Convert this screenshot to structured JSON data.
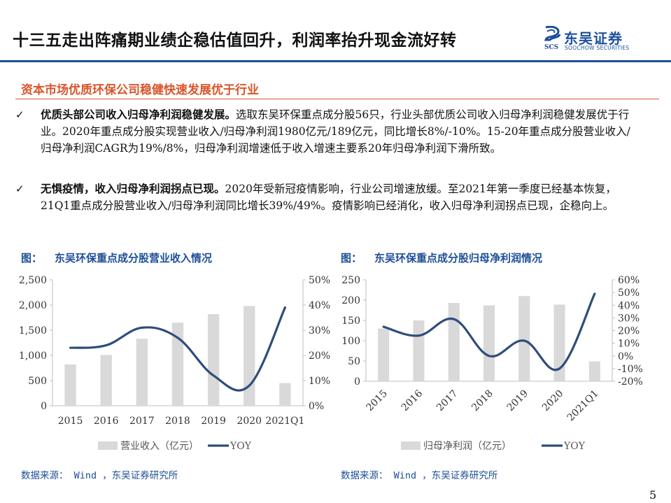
{
  "header": {
    "title": "十三五走出阵痛期业绩企稳估值回升，利润率抬升现金流好转",
    "logo_cn": "东吴证券",
    "logo_en": "SOOCHOW SECURITIES",
    "logo_mark_text": "SCS"
  },
  "section": {
    "subheading": "资本市场优质环保公司稳健快速发展优于行业"
  },
  "bullets": [
    {
      "mark": "✓",
      "lead": "优质头部公司收入归母净利润稳健发展。",
      "text": "选取东吴环保重点成分股56只，行业头部优质公司收入归母净利润稳健发展优于行业。2020年重点成分股实现营业收入/归母净利润1980亿元/189亿元，同比增长8%/-10%。15-20年重点成分股营业收入/归母净利润CAGR为19%/8%，归母净利润增速低于收入增速主要系20年归母净利润下滑所致。"
    },
    {
      "mark": "✓",
      "lead": "无惧疫情，收入归母净利润拐点已现。",
      "text": "2020年受新冠疫情影响，行业公司增速放缓。至2021年第一季度已经基本恢复，21Q1重点成分股营业收入/归母净利润同比增长39%/49%。疫情影响已经消化，收入归母净利润拐点已现，企稳向上。"
    }
  ],
  "figures": [
    {
      "label": "图：",
      "title": "东吴环保重点成分股营业收入情况",
      "source": "数据来源： Wind ，东吴证券研究所"
    },
    {
      "label": "图：",
      "title": "东吴环保重点成分股归母净利润情况",
      "source": "数据来源： Wind ，东吴证券研究所"
    }
  ],
  "page_number": "5",
  "colors": {
    "bar": "#d9d9d9",
    "line": "#2e4d7b",
    "accent_blue": "#1e4f97",
    "accent_orange": "#d7562b"
  },
  "chart_data": [
    {
      "type": "bar+line",
      "categories": [
        "2015",
        "2016",
        "2017",
        "2018",
        "2019",
        "2020",
        "2021Q1"
      ],
      "series": [
        {
          "name": "营业收入（亿元）",
          "type": "bar",
          "axis": "left",
          "values": [
            820,
            1010,
            1330,
            1650,
            1820,
            1980,
            450
          ]
        },
        {
          "name": "YOY",
          "type": "line",
          "axis": "right",
          "values": [
            23,
            24,
            31,
            27,
            12,
            8,
            39
          ]
        }
      ],
      "y_left": {
        "min": 0,
        "max": 2500,
        "ticks": [
          0,
          500,
          1000,
          1500,
          2000,
          2500
        ],
        "tick_labels": [
          "0",
          "500",
          "1,000",
          "1,500",
          "2,000",
          "2,500"
        ]
      },
      "y_right": {
        "min": 0,
        "max": 50,
        "ticks": [
          0,
          10,
          20,
          30,
          40,
          50
        ],
        "tick_labels": [
          "0%",
          "10%",
          "20%",
          "30%",
          "40%",
          "50%"
        ]
      },
      "x_tick_labels": [
        "2015",
        "2016",
        "2017",
        "2018",
        "2019",
        "2020",
        "2021Q1"
      ],
      "legend_position": "bottom",
      "grid": false
    },
    {
      "type": "bar+line",
      "categories": [
        "2015",
        "2016",
        "2017",
        "2018",
        "2019",
        "2020",
        "2021Q1"
      ],
      "series": [
        {
          "name": "归母净利润（亿元）",
          "type": "bar",
          "axis": "left",
          "values": [
            130,
            150,
            193,
            187,
            210,
            189,
            49
          ]
        },
        {
          "name": "YOY",
          "type": "line",
          "axis": "right",
          "values": [
            23,
            16,
            29,
            0,
            12,
            -10,
            49
          ]
        }
      ],
      "y_left": {
        "min": 0,
        "max": 250,
        "ticks": [
          0,
          50,
          100,
          150,
          200,
          250
        ],
        "tick_labels": [
          "0",
          "50",
          "100",
          "150",
          "200",
          "250"
        ]
      },
      "y_right": {
        "min": -20,
        "max": 60,
        "ticks": [
          -20,
          -10,
          0,
          10,
          20,
          30,
          40,
          50,
          60
        ],
        "tick_labels": [
          "-20%",
          "-10%",
          "0%",
          "10%",
          "20%",
          "30%",
          "40%",
          "50%",
          "60%"
        ]
      },
      "x_tick_labels": [
        "2015",
        "2016",
        "2017",
        "2018",
        "2019",
        "2020",
        "2021Q1"
      ],
      "x_label_rotation": "rotated",
      "legend_position": "bottom",
      "grid": false
    }
  ]
}
